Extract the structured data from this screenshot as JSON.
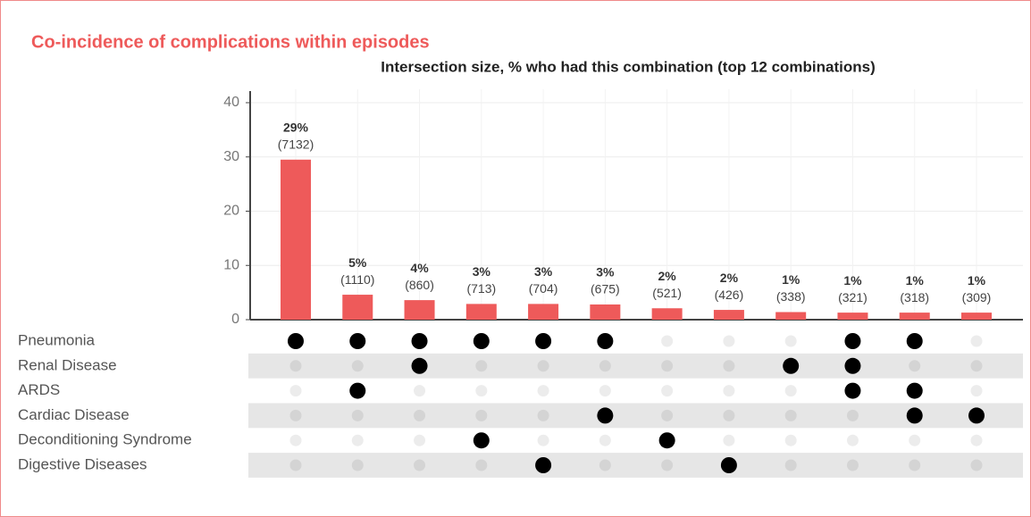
{
  "chart_data": {
    "type": "upset",
    "title": "Co-incidence of complications within episodes",
    "subtitle": "Intersection size, % who had this combination (top 12 combinations)",
    "values": [
      29.5,
      4.6,
      3.6,
      2.9,
      2.9,
      2.8,
      2.1,
      1.8,
      1.4,
      1.3,
      1.3,
      1.3
    ],
    "value_labels": [
      "29%",
      "5%",
      "4%",
      "3%",
      "3%",
      "3%",
      "2%",
      "2%",
      "1%",
      "1%",
      "1%",
      "1%"
    ],
    "counts": [
      7132,
      1110,
      860,
      713,
      704,
      675,
      521,
      426,
      338,
      321,
      318,
      309
    ],
    "count_labels": [
      "(7132)",
      "(1110)",
      "(860)",
      "(713)",
      "(704)",
      "(675)",
      "(521)",
      "(426)",
      "(338)",
      "(321)",
      "(318)",
      "(309)"
    ],
    "color": "#ee5a5a",
    "ylim": [
      0,
      40
    ],
    "yticks": [
      0,
      10,
      20,
      30,
      40
    ],
    "grid": true,
    "sets": [
      "Pneumonia",
      "Renal Disease",
      "ARDS",
      "Cardiac Disease",
      "Deconditioning Syndrome",
      "Digestive Diseases"
    ],
    "membership": [
      [
        1,
        1,
        1,
        1,
        1,
        1,
        0,
        0,
        0,
        1,
        1,
        0
      ],
      [
        0,
        0,
        1,
        0,
        0,
        0,
        0,
        0,
        1,
        1,
        0,
        0
      ],
      [
        0,
        1,
        0,
        0,
        0,
        0,
        0,
        0,
        0,
        1,
        1,
        0
      ],
      [
        0,
        0,
        0,
        0,
        0,
        1,
        0,
        0,
        0,
        0,
        1,
        1
      ],
      [
        0,
        0,
        0,
        1,
        0,
        0,
        1,
        0,
        0,
        0,
        0,
        0
      ],
      [
        0,
        0,
        0,
        0,
        1,
        0,
        0,
        1,
        0,
        0,
        0,
        0
      ]
    ]
  }
}
